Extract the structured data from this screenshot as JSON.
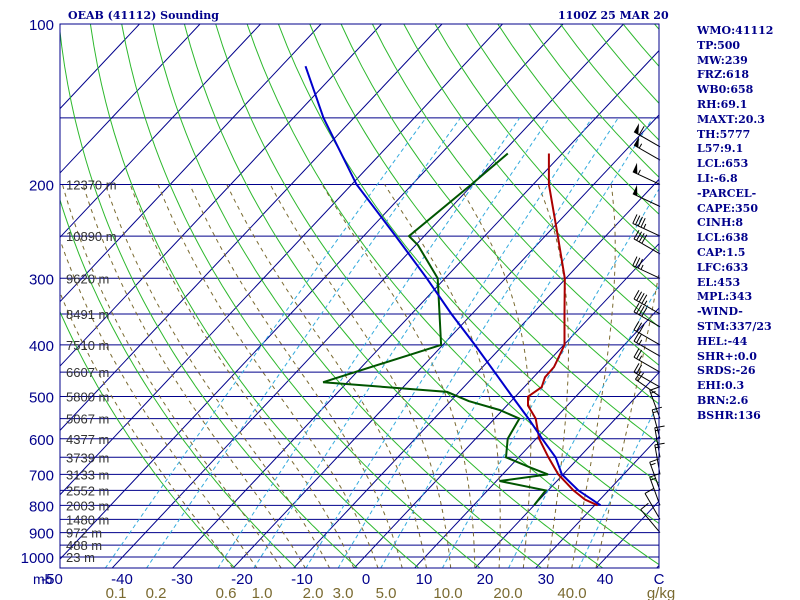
{
  "header": {
    "station": "OEAB (41112) Sounding",
    "time": "1100Z 25 MAR 20"
  },
  "stats": [
    "WMO:41112",
    "TP:500",
    "MW:239",
    "FRZ:618",
    "WB0:658",
    "RH:69.1",
    "MAXT:20.3",
    "TH:5777",
    "L57:9.1",
    "LCL:653",
    "LI:-6.8",
    "-PARCEL-",
    "CAPE:350",
    "CINH:8",
    "LCL:638",
    "CAP:1.5",
    "LFC:633",
    "EL:453",
    "MPL:343",
    "-WIND-",
    "STM:337/23",
    "HEL:-44",
    "SHR+:0.0",
    "SRDS:-26",
    "EHI:0.3",
    "BRN:2.6",
    "BSHR:136"
  ],
  "colors": {
    "isobar": "#00008b",
    "isotherm": "#00008b",
    "dry_adiabat": "#2db82d",
    "mixing_ratio": "#33aadd",
    "moist_adiabat": "#7a6a30",
    "temperature": "#aa0000",
    "dewpoint": "#005500",
    "parcel": "#0000cc",
    "axis_text": "#00008b",
    "mixing_text": "#7a6a30"
  },
  "chart_data": {
    "type": "skew-t log-p",
    "pressure_ticks": [
      100,
      200,
      300,
      400,
      500,
      600,
      700,
      800,
      900,
      1000
    ],
    "pressure_axis_unit": "mb",
    "temperature_ticks": [
      "-50",
      "-40",
      "-30",
      "-20",
      "-10",
      "0",
      "10",
      "20",
      "30",
      "40",
      "C"
    ],
    "mixing_ratio_labels": [
      "0.1",
      "0.2",
      "0.6",
      "1.0",
      "2.0",
      "3.0",
      "5.0",
      "10.0",
      "20.0",
      "40.0",
      "g/kg"
    ],
    "mixing_ratio_values": [
      0.1,
      0.2,
      0.6,
      1.0,
      2.0,
      3.0,
      5.0,
      10.0,
      20.0,
      40.0
    ],
    "height_labels": [
      {
        "p": 200,
        "text": "12370 m"
      },
      {
        "p": 250,
        "text": "10890 m"
      },
      {
        "p": 300,
        "text": "9620 m"
      },
      {
        "p": 350,
        "text": "8491 m"
      },
      {
        "p": 400,
        "text": "7510 m"
      },
      {
        "p": 450,
        "text": "6607 m"
      },
      {
        "p": 500,
        "text": "5800 m"
      },
      {
        "p": 550,
        "text": "5067 m"
      },
      {
        "p": 600,
        "text": "4377 m"
      },
      {
        "p": 650,
        "text": "3739 m"
      },
      {
        "p": 700,
        "text": "3133 m"
      },
      {
        "p": 750,
        "text": "2552 m"
      },
      {
        "p": 800,
        "text": "2003 m"
      },
      {
        "p": 850,
        "text": "1480 m"
      },
      {
        "p": 900,
        "text": "972 m"
      },
      {
        "p": 950,
        "text": "488 m"
      },
      {
        "p": 1000,
        "text": "23 m"
      }
    ],
    "temperature": [
      {
        "p": 800,
        "t": 30.5
      },
      {
        "p": 780,
        "t": 27.5
      },
      {
        "p": 750,
        "t": 24.2
      },
      {
        "p": 700,
        "t": 19.2
      },
      {
        "p": 650,
        "t": 14.9
      },
      {
        "p": 600,
        "t": 10.5
      },
      {
        "p": 550,
        "t": 6.8
      },
      {
        "p": 520,
        "t": 3.5
      },
      {
        "p": 500,
        "t": 2.1
      },
      {
        "p": 480,
        "t": 2.9
      },
      {
        "p": 460,
        "t": 1.9
      },
      {
        "p": 440,
        "t": 1.8
      },
      {
        "p": 400,
        "t": 0.1
      },
      {
        "p": 350,
        "t": -4.7
      },
      {
        "p": 300,
        "t": -10.2
      },
      {
        "p": 250,
        "t": -17.9
      },
      {
        "p": 200,
        "t": -27.4
      },
      {
        "p": 175,
        "t": -32.2
      }
    ],
    "dewpoint": [
      {
        "p": 800,
        "t": 20.0
      },
      {
        "p": 750,
        "t": 19.6
      },
      {
        "p": 720,
        "t": 10.5
      },
      {
        "p": 700,
        "t": 17.5
      },
      {
        "p": 680,
        "t": 13.6
      },
      {
        "p": 650,
        "t": 7.9
      },
      {
        "p": 600,
        "t": 5.3
      },
      {
        "p": 550,
        "t": 4.1
      },
      {
        "p": 530,
        "t": -0.5
      },
      {
        "p": 510,
        "t": -7.0
      },
      {
        "p": 490,
        "t": -12.0
      },
      {
        "p": 470,
        "t": -34.0
      },
      {
        "p": 400,
        "t": -20.3
      },
      {
        "p": 300,
        "t": -31.2
      },
      {
        "p": 260,
        "t": -39.6
      },
      {
        "p": 250,
        "t": -42.5
      },
      {
        "p": 200,
        "t": -40.2
      },
      {
        "p": 175,
        "t": -39.0
      }
    ],
    "parcel": [
      {
        "p": 800,
        "t": 31.0
      },
      {
        "p": 750,
        "t": 25.0
      },
      {
        "p": 700,
        "t": 19.8
      },
      {
        "p": 650,
        "t": 16.1
      },
      {
        "p": 600,
        "t": 11.0
      },
      {
        "p": 550,
        "t": 5.6
      },
      {
        "p": 500,
        "t": -0.5
      },
      {
        "p": 450,
        "t": -7.2
      },
      {
        "p": 400,
        "t": -14.7
      },
      {
        "p": 350,
        "t": -23.4
      },
      {
        "p": 300,
        "t": -33.0
      },
      {
        "p": 250,
        "t": -44.7
      },
      {
        "p": 200,
        "t": -59.2
      },
      {
        "p": 150,
        "t": -75.0
      },
      {
        "p": 120,
        "t": -86.0
      }
    ],
    "wind_barbs": [
      {
        "p": 170,
        "dir": 300,
        "kt": 60
      },
      {
        "p": 180,
        "dir": 300,
        "kt": 55
      },
      {
        "p": 200,
        "dir": 295,
        "kt": 55
      },
      {
        "p": 220,
        "dir": 295,
        "kt": 50
      },
      {
        "p": 250,
        "dir": 295,
        "kt": 45
      },
      {
        "p": 270,
        "dir": 300,
        "kt": 40
      },
      {
        "p": 300,
        "dir": 295,
        "kt": 35
      },
      {
        "p": 350,
        "dir": 300,
        "kt": 45
      },
      {
        "p": 370,
        "dir": 300,
        "kt": 40
      },
      {
        "p": 400,
        "dir": 300,
        "kt": 30
      },
      {
        "p": 420,
        "dir": 300,
        "kt": 25
      },
      {
        "p": 450,
        "dir": 300,
        "kt": 25
      },
      {
        "p": 480,
        "dir": 300,
        "kt": 20
      },
      {
        "p": 500,
        "dir": 305,
        "kt": 20
      },
      {
        "p": 550,
        "dir": 340,
        "kt": 15
      },
      {
        "p": 600,
        "dir": 345,
        "kt": 15
      },
      {
        "p": 650,
        "dir": 350,
        "kt": 15
      },
      {
        "p": 700,
        "dir": 350,
        "kt": 15
      },
      {
        "p": 750,
        "dir": 340,
        "kt": 15
      },
      {
        "p": 800,
        "dir": 340,
        "kt": 15
      },
      {
        "p": 850,
        "dir": 330,
        "kt": 10
      },
      {
        "p": 900,
        "dir": 320,
        "kt": 10
      }
    ],
    "xlim": [
      -50,
      50
    ],
    "ylim": [
      1050,
      100
    ]
  }
}
